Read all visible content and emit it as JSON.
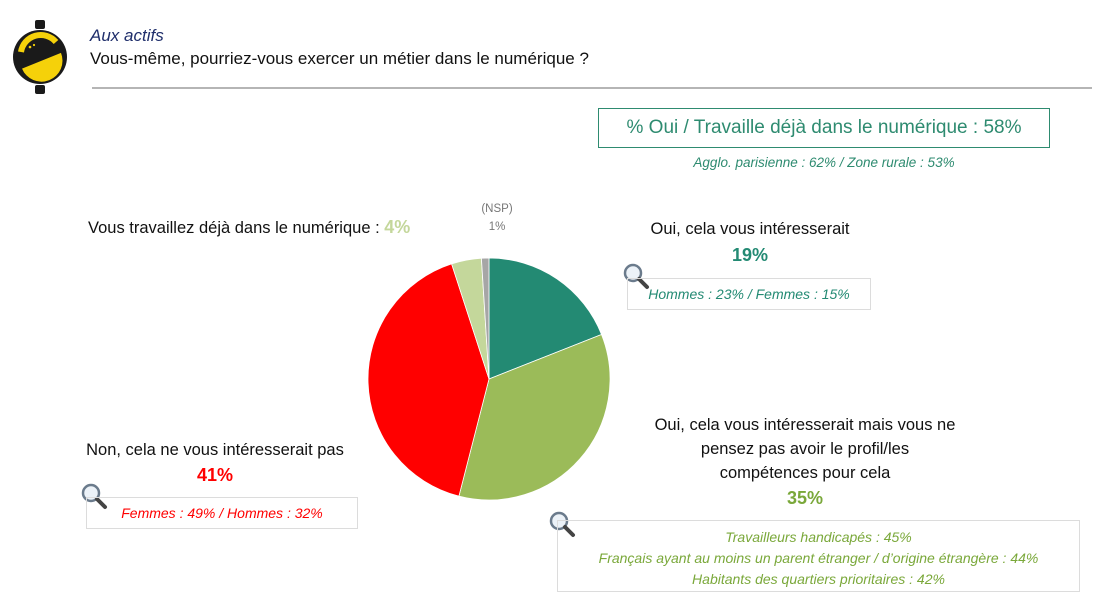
{
  "header": {
    "section_title": "Aux actifs",
    "question": "Vous-même, pourriez-vous exercer un métier dans le numérique ?"
  },
  "summary": {
    "headline": "% Oui / Travaille déjà dans le numérique : 58%",
    "detail": "Agglo. parisienne : 62% / Zone rurale : 53%"
  },
  "labels": {
    "deja": {
      "text": "Vous travaillez déjà dans le numérique :",
      "pct": "4%"
    },
    "nsp": {
      "text": "(NSP)",
      "pct": "1%"
    },
    "oui": {
      "text": "Oui, cela vous intéresserait",
      "pct": "19%",
      "detail": "Hommes : 23% / Femmes : 15%"
    },
    "oui_mais": {
      "line1": "Oui, cela vous intéresserait mais vous ne",
      "line2": "pensez pas avoir le profil/les",
      "line3": "compétences pour cela",
      "pct": "35%",
      "detail1": "Travailleurs handicapés : 45%",
      "detail2": "Français ayant au moins un parent étranger / d’origine étrangère : 44%",
      "detail3": "Habitants des quartiers prioritaires : 42%"
    },
    "non": {
      "text": "Non, cela ne vous intéresserait pas",
      "pct": "41%",
      "detail": "Femmes : 49% / Hommes : 32%"
    }
  },
  "icons": {
    "logo": "lemon-logo-icon",
    "magnifier": "magnifier-icon"
  },
  "colors": {
    "oui": "#238a73",
    "oui_mais": "#9bbb59",
    "non": "#ff0000",
    "deja": "#c4d79b",
    "nsp": "#a6a6a6",
    "accent": "#2e8b70"
  },
  "chart_data": {
    "type": "pie",
    "start_angle_deg": 0,
    "direction": "clockwise",
    "slices": [
      {
        "label": "Oui, cela vous intéresserait",
        "value": 19,
        "color": "#238a73"
      },
      {
        "label": "Oui, cela vous intéresserait mais vous ne pensez pas avoir le profil/les compétences pour cela",
        "value": 35,
        "color": "#9bbb59"
      },
      {
        "label": "Non, cela ne vous intéresserait pas",
        "value": 41,
        "color": "#ff0000"
      },
      {
        "label": "Vous travaillez déjà dans le numérique",
        "value": 4,
        "color": "#c4d79b"
      },
      {
        "label": "(NSP)",
        "value": 1,
        "color": "#a6a6a6"
      }
    ]
  }
}
